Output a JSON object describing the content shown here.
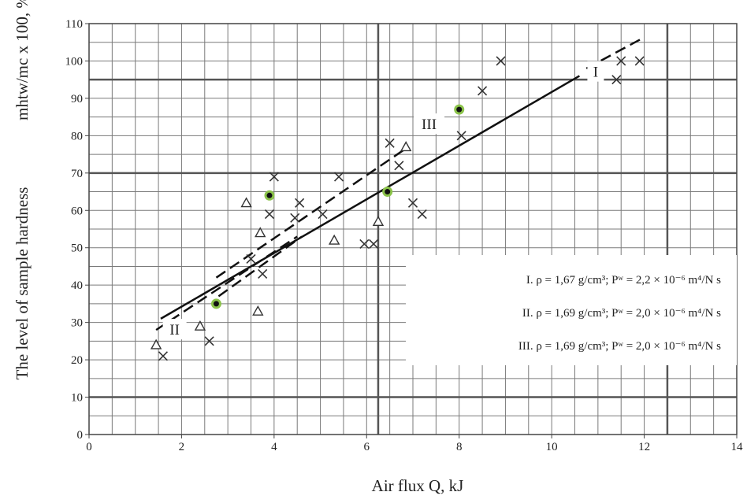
{
  "chart_data": {
    "type": "scatter",
    "xlabel": "Air flux Q, kJ",
    "ylabel_prefix": "The level of sample hardness",
    "ylabel_formula": "mhtw/mc x 100, %",
    "xlim": [
      0,
      14
    ],
    "ylim": [
      0,
      110
    ],
    "x_ticks": [
      0,
      2,
      4,
      6,
      8,
      10,
      12,
      14
    ],
    "y_ticks": [
      0,
      10,
      20,
      30,
      40,
      50,
      60,
      70,
      80,
      90,
      100,
      110
    ],
    "grid": true,
    "legend_position": "right",
    "legend": [
      "I. ρ = 1,67 g/cm³; Pʷ = 2,2 × 10⁻⁶ m⁴/N s",
      "II. ρ = 1,69 g/cm³; Pʷ = 2,0 × 10⁻⁶ m⁴/N s",
      "III. ρ = 1,69 g/cm³; Pʷ = 2,0 × 10⁻⁶ m⁴/N s"
    ],
    "curve_labels": [
      {
        "text": "I",
        "x": 10.95,
        "y": 97
      },
      {
        "text": "II",
        "x": 1.85,
        "y": 28
      },
      {
        "text": "III",
        "x": 7.35,
        "y": 83
      }
    ],
    "series": [
      {
        "marker": "x",
        "points": [
          [
            1.6,
            21
          ],
          [
            2.6,
            25
          ],
          [
            3.5,
            47
          ],
          [
            3.75,
            43
          ],
          [
            3.9,
            59
          ],
          [
            4.0,
            69
          ],
          [
            4.45,
            58
          ],
          [
            4.55,
            62
          ],
          [
            5.05,
            59
          ],
          [
            5.4,
            69
          ],
          [
            5.95,
            51
          ],
          [
            6.15,
            51
          ],
          [
            6.5,
            78
          ],
          [
            6.7,
            72
          ],
          [
            7.0,
            62
          ],
          [
            7.2,
            59
          ],
          [
            8.05,
            80
          ],
          [
            8.5,
            92
          ],
          [
            8.9,
            100
          ],
          [
            11.4,
            95
          ],
          [
            11.5,
            100
          ],
          [
            11.9,
            100
          ]
        ]
      },
      {
        "marker": "triangle",
        "points": [
          [
            1.45,
            24
          ],
          [
            2.4,
            29
          ],
          [
            3.4,
            62
          ],
          [
            3.65,
            33
          ],
          [
            3.7,
            54
          ],
          [
            5.3,
            52
          ],
          [
            6.25,
            57
          ],
          [
            6.85,
            77
          ]
        ]
      },
      {
        "marker": "dot",
        "color": "#8bc34a",
        "points": [
          [
            2.75,
            35
          ],
          [
            3.9,
            64
          ],
          [
            6.45,
            65
          ],
          [
            8.0,
            87
          ]
        ]
      }
    ],
    "lines": [
      {
        "style": "solid",
        "from": [
          1.55,
          31
        ],
        "to": [
          10.6,
          96
        ]
      },
      {
        "style": "dashed",
        "from": [
          10.75,
          98
        ],
        "to": [
          11.95,
          106
        ]
      },
      {
        "style": "dashed",
        "from": [
          1.45,
          28
        ],
        "to": [
          4.5,
          53
        ]
      },
      {
        "style": "dashed",
        "from": [
          2.75,
          42
        ],
        "to": [
          6.9,
          77
        ]
      },
      {
        "style": "dashed",
        "from": [
          2.8,
          37
        ],
        "to": [
          4.6,
          53
        ]
      }
    ]
  }
}
